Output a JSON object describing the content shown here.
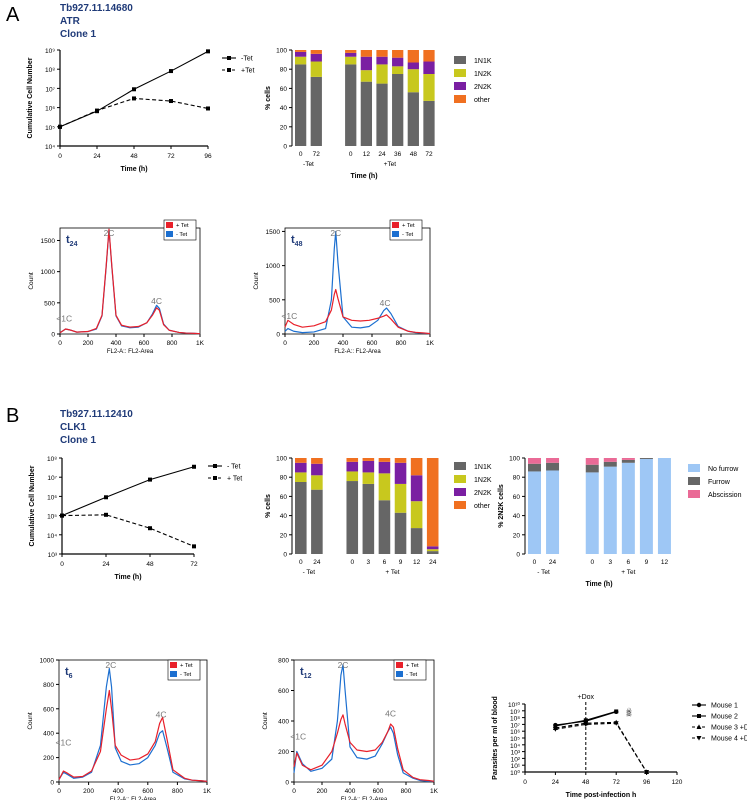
{
  "panels": [
    {
      "letter": "A",
      "gene": "Tb927.11.14680",
      "protein": "ATR",
      "clone": "Clone 1"
    },
    {
      "letter": "B",
      "gene": "Tb927.11.12410",
      "protein": "CLK1",
      "clone": "Clone 1"
    }
  ],
  "colors": {
    "n1n1k": "#666666",
    "n1n2k": "#c8c81e",
    "n2n2k": "#7a1fa2",
    "other": "#f07020",
    "plus_tet": "#e8202a",
    "minus_tet": "#1c6fd0",
    "no_furrow": "#9ec7f5",
    "furrow": "#666666",
    "abscission": "#ea6a96"
  },
  "chart_data": [
    {
      "id": "A_growth",
      "type": "line",
      "ylabel": "Cumulative Cell Number",
      "xlabel": "Time (h)",
      "yscale": "log",
      "ylim": [
        10000,
        1000000000
      ],
      "xlim": [
        0,
        96
      ],
      "xticks": [
        "0",
        "24",
        "48",
        "72",
        "96"
      ],
      "yticks": [
        "10⁴",
        "10⁵",
        "10⁶",
        "10⁷",
        "10⁸",
        "10⁹"
      ],
      "series": [
        {
          "name": "-Tet",
          "x": [
            0,
            24,
            48,
            72,
            96
          ],
          "y": [
            100000,
            650000,
            9000000,
            80000000,
            850000000
          ],
          "marker": "square",
          "dash": false
        },
        {
          "name": "+Tet",
          "x": [
            0,
            24,
            48,
            72,
            96
          ],
          "y": [
            100000,
            700000,
            3000000,
            2200000,
            900000
          ],
          "marker": "square",
          "dash": true
        }
      ]
    },
    {
      "id": "A_cellcycle",
      "type": "bar",
      "stacked": true,
      "ylabel": "% cells",
      "xlabel": "Time (h)",
      "ylim": [
        0,
        100
      ],
      "yticks": [
        "0",
        "20",
        "40",
        "60",
        "80",
        "100"
      ],
      "categories": [
        "0",
        "72",
        "0",
        "12",
        "24",
        "36",
        "48",
        "72"
      ],
      "groups": [
        {
          "label": "-Tet",
          "indices": [
            0,
            1
          ]
        },
        {
          "label": "+Tet",
          "indices": [
            2,
            3,
            4,
            5,
            6,
            7
          ]
        }
      ],
      "series": [
        {
          "name": "1N1K",
          "values": [
            85,
            72,
            85,
            67,
            65,
            75,
            56,
            47
          ]
        },
        {
          "name": "1N2K",
          "values": [
            8,
            16,
            8,
            12,
            20,
            8,
            24,
            28
          ]
        },
        {
          "name": "2N2K",
          "values": [
            5,
            8,
            4,
            14,
            8,
            9,
            7,
            13
          ]
        },
        {
          "name": "other",
          "values": [
            2,
            4,
            3,
            7,
            7,
            8,
            13,
            12
          ]
        }
      ]
    },
    {
      "id": "A_flow24",
      "type": "line",
      "tag": "t",
      "tag_sub": "24",
      "ylabel": "Count",
      "xlabel": "FL2-A:: FL2-Area",
      "ylim": [
        0,
        1700
      ],
      "yticks": [
        "0",
        "500",
        "1000",
        "1500"
      ],
      "xticks": [
        "0",
        "200",
        "400",
        "600",
        "800",
        "1K"
      ],
      "peak_labels": [
        {
          "text": "2C",
          "x": 350,
          "y": 1730
        },
        {
          "text": "4C",
          "x": 690,
          "y": 480
        },
        {
          "text": "<1C",
          "x": 30,
          "y": 200
        }
      ],
      "series": [
        {
          "name": "+ Tet",
          "x": [
            0,
            40,
            80,
            120,
            200,
            260,
            300,
            330,
            350,
            370,
            400,
            440,
            500,
            560,
            620,
            660,
            690,
            710,
            740,
            780,
            850,
            900,
            960,
            1000
          ],
          "y": [
            20,
            80,
            60,
            30,
            40,
            90,
            300,
            1100,
            1680,
            1100,
            300,
            140,
            110,
            120,
            180,
            300,
            420,
            380,
            150,
            60,
            25,
            15,
            10,
            5
          ]
        },
        {
          "name": "- Tet",
          "x": [
            0,
            40,
            80,
            120,
            200,
            260,
            300,
            330,
            350,
            370,
            400,
            440,
            500,
            560,
            620,
            660,
            690,
            710,
            740,
            780,
            850,
            900,
            960,
            1000
          ],
          "y": [
            20,
            80,
            60,
            30,
            40,
            80,
            290,
            1080,
            1670,
            1080,
            290,
            130,
            100,
            110,
            180,
            320,
            460,
            410,
            160,
            60,
            25,
            15,
            10,
            5
          ]
        }
      ]
    },
    {
      "id": "A_flow48",
      "type": "line",
      "tag": "t",
      "tag_sub": "48",
      "ylabel": "Count",
      "xlabel": "FL2-A:: FL2-Area",
      "ylim": [
        0,
        1550
      ],
      "yticks": [
        "0",
        "500",
        "1000",
        "1500"
      ],
      "xticks": [
        "0",
        "200",
        "400",
        "600",
        "800",
        "1K"
      ],
      "peak_labels": [
        {
          "text": "2C",
          "x": 350,
          "y": 1580
        },
        {
          "text": "4C",
          "x": 690,
          "y": 410
        },
        {
          "text": "<1C",
          "x": 30,
          "y": 220
        }
      ],
      "series": [
        {
          "name": "+ Tet",
          "x": [
            0,
            20,
            60,
            120,
            200,
            280,
            320,
            340,
            350,
            365,
            400,
            460,
            520,
            580,
            640,
            680,
            700,
            730,
            780,
            850,
            900,
            960,
            1000
          ],
          "y": [
            100,
            200,
            140,
            100,
            120,
            180,
            350,
            580,
            650,
            520,
            250,
            200,
            190,
            200,
            230,
            260,
            280,
            220,
            100,
            40,
            25,
            15,
            5
          ]
        },
        {
          "name": "- Tet",
          "x": [
            0,
            20,
            60,
            120,
            200,
            280,
            320,
            340,
            350,
            365,
            400,
            460,
            520,
            580,
            640,
            680,
            700,
            730,
            780,
            850,
            900,
            960,
            1000
          ],
          "y": [
            40,
            80,
            40,
            20,
            30,
            80,
            500,
            1250,
            1500,
            1050,
            250,
            100,
            90,
            110,
            200,
            340,
            380,
            300,
            110,
            40,
            20,
            10,
            5
          ]
        }
      ]
    },
    {
      "id": "B_growth",
      "type": "line",
      "ylabel": "Cumulative Cell Number",
      "xlabel": "Time (h)",
      "yscale": "log",
      "ylim": [
        1000,
        100000000
      ],
      "xlim": [
        0,
        72
      ],
      "xticks": [
        "0",
        "24",
        "48",
        "72"
      ],
      "yticks": [
        "10³",
        "10⁴",
        "10⁵",
        "10⁶",
        "10⁷",
        "10⁸"
      ],
      "series": [
        {
          "name": "- Tet",
          "x": [
            0,
            24,
            48,
            72
          ],
          "y": [
            100000,
            900000,
            7500000,
            35000000
          ],
          "marker": "square",
          "dash": false
        },
        {
          "name": "+ Tet",
          "x": [
            0,
            24,
            48,
            72
          ],
          "y": [
            100000,
            110000,
            22000,
            2500
          ],
          "marker": "square",
          "dash": true
        }
      ]
    },
    {
      "id": "B_cellcycle",
      "type": "bar",
      "stacked": true,
      "ylabel": "% cells",
      "xlabel": "",
      "ylim": [
        0,
        100
      ],
      "yticks": [
        "0",
        "20",
        "40",
        "60",
        "80",
        "100"
      ],
      "categories": [
        "0",
        "24",
        "0",
        "3",
        "6",
        "9",
        "12",
        "24"
      ],
      "groups": [
        {
          "label": "- Tet",
          "indices": [
            0,
            1
          ]
        },
        {
          "label": "+ Tet",
          "indices": [
            2,
            3,
            4,
            5,
            6,
            7
          ]
        }
      ],
      "series": [
        {
          "name": "1N1K",
          "values": [
            75,
            67,
            76,
            73,
            56,
            43,
            27,
            3
          ]
        },
        {
          "name": "1N2K",
          "values": [
            10,
            15,
            10,
            12,
            28,
            30,
            28,
            2
          ]
        },
        {
          "name": "2N2K",
          "values": [
            10,
            12,
            10,
            12,
            12,
            22,
            27,
            3
          ]
        },
        {
          "name": "other",
          "values": [
            5,
            6,
            4,
            3,
            4,
            5,
            18,
            92
          ]
        }
      ]
    },
    {
      "id": "B_furrow",
      "type": "bar",
      "stacked": true,
      "ylabel": "% 2N2K cells",
      "xlabel": "Time (h)",
      "ylim": [
        0,
        100
      ],
      "yticks": [
        "0",
        "20",
        "40",
        "60",
        "80",
        "100"
      ],
      "categories": [
        "0",
        "24",
        "0",
        "3",
        "6",
        "9",
        "12"
      ],
      "groups": [
        {
          "label": "- Tet",
          "indices": [
            0,
            1
          ]
        },
        {
          "label": "+ Tet",
          "indices": [
            2,
            3,
            4,
            5,
            6
          ]
        }
      ],
      "series": [
        {
          "name": "No furrow",
          "values": [
            86,
            87,
            85,
            91,
            95,
            99,
            100
          ]
        },
        {
          "name": "Furrow",
          "values": [
            8,
            8,
            8,
            5,
            3,
            1,
            0
          ]
        },
        {
          "name": "Abscission",
          "values": [
            6,
            5,
            7,
            4,
            2,
            0,
            0
          ]
        }
      ]
    },
    {
      "id": "B_flow6",
      "type": "line",
      "tag": "t",
      "tag_sub": "6",
      "ylabel": "Count",
      "xlabel": "FL2-A:: FL2-Area",
      "ylim": [
        0,
        1000
      ],
      "yticks": [
        "0",
        "200",
        "400",
        "600",
        "800",
        "1000"
      ],
      "xticks": [
        "0",
        "200",
        "400",
        "600",
        "800",
        "1K"
      ],
      "peak_labels": [
        {
          "text": "2C",
          "x": 350,
          "y": 940
        },
        {
          "text": "4C",
          "x": 690,
          "y": 530
        },
        {
          "text": "<1C",
          "x": 30,
          "y": 300
        }
      ],
      "series": [
        {
          "name": "+ Tet",
          "x": [
            0,
            30,
            60,
            100,
            160,
            220,
            280,
            320,
            340,
            355,
            380,
            420,
            480,
            540,
            600,
            650,
            680,
            700,
            730,
            770,
            850,
            900,
            960,
            1000
          ],
          "y": [
            20,
            90,
            70,
            40,
            45,
            90,
            250,
            600,
            750,
            600,
            300,
            220,
            180,
            190,
            230,
            330,
            480,
            530,
            350,
            100,
            30,
            15,
            10,
            5
          ]
        },
        {
          "name": "- Tet",
          "x": [
            0,
            30,
            60,
            100,
            160,
            220,
            280,
            320,
            340,
            355,
            380,
            420,
            480,
            540,
            600,
            650,
            680,
            700,
            730,
            770,
            850,
            900,
            960,
            1000
          ],
          "y": [
            20,
            80,
            60,
            30,
            40,
            80,
            300,
            780,
            930,
            780,
            280,
            170,
            140,
            150,
            200,
            300,
            400,
            420,
            280,
            80,
            25,
            15,
            10,
            5
          ]
        }
      ]
    },
    {
      "id": "B_flow12",
      "type": "line",
      "tag": "t",
      "tag_sub": "12",
      "ylabel": "Count",
      "xlabel": "FL2-A:: FL2-Area",
      "ylim": [
        0,
        800
      ],
      "yticks": [
        "0",
        "200",
        "400",
        "600",
        "800"
      ],
      "xticks": [
        "0",
        "200",
        "400",
        "600",
        "800",
        "1K"
      ],
      "peak_labels": [
        {
          "text": "2C",
          "x": 350,
          "y": 810
        },
        {
          "text": "4C",
          "x": 690,
          "y": 430
        },
        {
          "text": "<1C",
          "x": 30,
          "y": 280
        }
      ],
      "series": [
        {
          "name": "+ Tet",
          "x": [
            0,
            20,
            60,
            120,
            200,
            270,
            310,
            335,
            350,
            365,
            400,
            450,
            520,
            580,
            630,
            670,
            690,
            710,
            740,
            780,
            850,
            900,
            960,
            1000
          ],
          "y": [
            100,
            190,
            110,
            80,
            110,
            200,
            320,
            410,
            440,
            380,
            260,
            210,
            200,
            210,
            260,
            330,
            380,
            360,
            220,
            80,
            30,
            15,
            10,
            5
          ]
        },
        {
          "name": "- Tet",
          "x": [
            0,
            20,
            60,
            120,
            200,
            270,
            310,
            335,
            350,
            365,
            400,
            450,
            520,
            580,
            630,
            670,
            690,
            710,
            740,
            780,
            850,
            900,
            960,
            1000
          ],
          "y": [
            60,
            200,
            120,
            70,
            90,
            150,
            400,
            700,
            770,
            600,
            230,
            160,
            150,
            170,
            250,
            330,
            360,
            320,
            180,
            60,
            25,
            10,
            5,
            5
          ]
        }
      ]
    },
    {
      "id": "B_mouse",
      "type": "line",
      "ylabel": "Parasites per ml of blood",
      "xlabel": "Time post-infection h",
      "yscale": "log",
      "ylim": [
        1,
        10000000000
      ],
      "xlim": [
        0,
        120
      ],
      "xticks": [
        "0",
        "24",
        "48",
        "72",
        "96",
        "120"
      ],
      "yticks": [
        "10⁰",
        "10¹",
        "10²",
        "10³",
        "10⁴",
        "10⁵",
        "10⁶",
        "10⁷",
        "10⁸",
        "10⁹",
        "10¹⁰"
      ],
      "annotations": [
        {
          "text": "+Dox",
          "x": 48
        }
      ],
      "markers_text": [
        "☠",
        "☠"
      ],
      "series": [
        {
          "name": "Mouse 1",
          "x": [
            24,
            48,
            72
          ],
          "y": [
            8000000,
            30000000,
            700000000
          ],
          "marker": "circle",
          "dash": false
        },
        {
          "name": "Mouse 2",
          "x": [
            24,
            48,
            72
          ],
          "y": [
            6000000,
            40000000,
            800000000
          ],
          "marker": "square",
          "dash": false
        },
        {
          "name": "Mouse 3 +Dox",
          "x": [
            24,
            48,
            72,
            96
          ],
          "y": [
            3000000,
            15000000,
            20000000,
            1
          ],
          "marker": "triangle",
          "dash": true
        },
        {
          "name": "Mouse 4 +Dox",
          "x": [
            24,
            48,
            72,
            96
          ],
          "y": [
            2000000,
            10000000,
            15000000,
            1
          ],
          "marker": "triangle-down",
          "dash": true
        }
      ]
    }
  ]
}
